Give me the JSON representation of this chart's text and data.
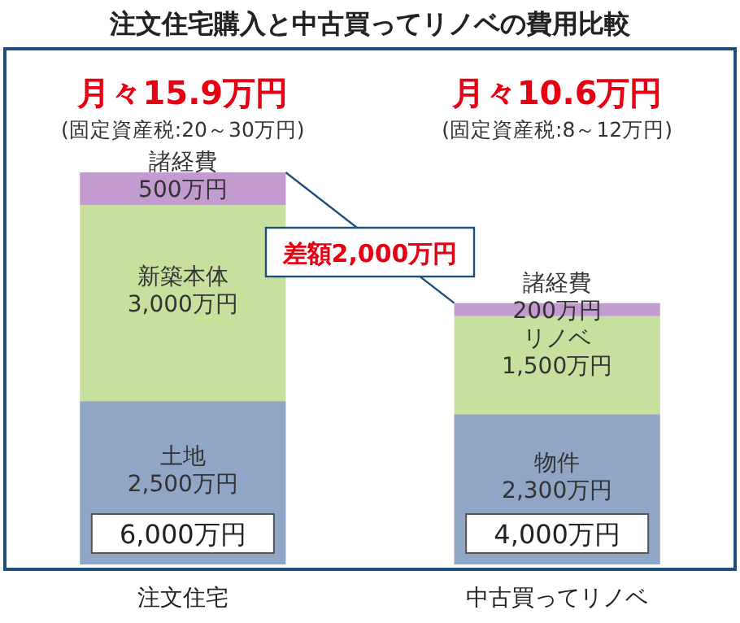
{
  "chart_data": {
    "type": "bar",
    "stacked": true,
    "title": "注文住宅購入と中古買ってリノベの費用比較",
    "categories": [
      "注文住宅",
      "中古買ってリノベ"
    ],
    "series": [
      {
        "color": "#8fa6c6",
        "values": [
          2500,
          2300
        ],
        "value_labels": [
          "2,500万円",
          "2,300万円"
        ]
      },
      {
        "color": "#c8e09e",
        "values": [
          3000,
          1500
        ],
        "value_labels": [
          "3,000万円",
          "1,500万円"
        ]
      },
      {
        "color": "#c49bd0",
        "values": [
          500,
          200
        ],
        "value_labels": [
          "500万円",
          "200万円"
        ]
      }
    ],
    "totals": [
      "6,000万円",
      "4,000万円"
    ],
    "annotations": [
      "月々15.9万円",
      "(固定資産税:20～30万円)",
      "月々10.6万円",
      "(固定資産税:8～12万円)",
      "土地",
      "新築本体",
      "諸経費",
      "物件",
      "リノベ",
      "諸経費",
      "差額2,000万円"
    ]
  }
}
